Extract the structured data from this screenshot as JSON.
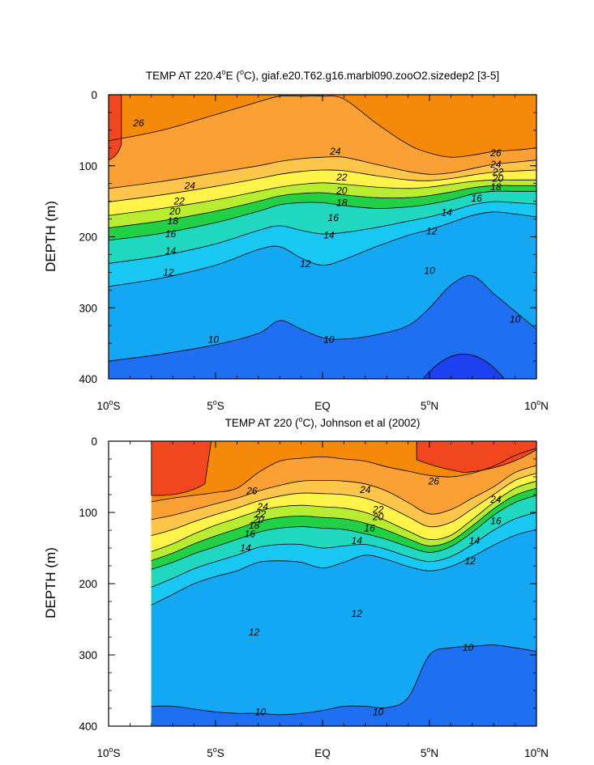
{
  "chart_data": [
    {
      "type": "contour",
      "title_parts": [
        "TEMP AT 220.4",
        "o",
        "E (",
        "o",
        "C), giaf.e20.T62.g16.marbl090.zooO2.sizedep2 [3-5]"
      ],
      "ylabel": "DEPTH (m)",
      "ylim": [
        0,
        400
      ],
      "xlim": [
        -10,
        10
      ],
      "yticks": [
        "0",
        "100",
        "200",
        "300",
        "400"
      ],
      "xticks": [
        {
          "pre": "10",
          "sup": "o",
          "post": "S"
        },
        {
          "pre": "5",
          "sup": "o",
          "post": "S"
        },
        {
          "pre": "EQ",
          "sup": "",
          "post": ""
        },
        {
          "pre": "5",
          "sup": "o",
          "post": "N"
        },
        {
          "pre": "10",
          "sup": "o",
          "post": "N"
        }
      ],
      "x": [
        -10,
        -7.5,
        -5,
        -3,
        -2,
        -1,
        0,
        1,
        2.5,
        4,
        5,
        6,
        7,
        8,
        9,
        10
      ],
      "isotherms": [
        {
          "level": 26,
          "depths": [
            65,
            50,
            28,
            10,
            2,
            2,
            2,
            6,
            40,
            70,
            82,
            88,
            85,
            80,
            78,
            75
          ]
        },
        {
          "level": 24,
          "depths": [
            132,
            122,
            110,
            100,
            94,
            90,
            88,
            88,
            98,
            108,
            112,
            110,
            104,
            98,
            95,
            92
          ]
        },
        {
          "level": 20,
          "depths": [
            170,
            160,
            148,
            136,
            130,
            126,
            124,
            126,
            130,
            132,
            130,
            126,
            122,
            120,
            120,
            120
          ]
        },
        {
          "level": 16,
          "depths": [
            205,
            195,
            180,
            164,
            155,
            152,
            152,
            156,
            160,
            158,
            154,
            148,
            140,
            136,
            136,
            136
          ]
        },
        {
          "level": 12,
          "depths": [
            270,
            258,
            240,
            218,
            214,
            230,
            240,
            232,
            214,
            198,
            190,
            180,
            170,
            165,
            168,
            172
          ]
        },
        {
          "level": 10,
          "depths": [
            375,
            365,
            352,
            336,
            318,
            330,
            342,
            344,
            338,
            325,
            300,
            268,
            255,
            280,
            305,
            330
          ]
        }
      ],
      "fill_colors": [
        {
          "from": 26,
          "to": 28,
          "color": "#f58a0a"
        },
        {
          "from": 24,
          "to": 26,
          "color": "#faa035"
        },
        {
          "from": 22,
          "to": 24,
          "color": "#fdc54a"
        },
        {
          "from": 20,
          "to": 22,
          "color": "#fff34a"
        },
        {
          "from": 18,
          "to": 20,
          "color": "#b8ec30"
        },
        {
          "from": 16,
          "to": 18,
          "color": "#22d046"
        },
        {
          "from": 14,
          "to": 16,
          "color": "#20d8c0"
        },
        {
          "from": 12,
          "to": 14,
          "color": "#18c8f2"
        },
        {
          "from": 10,
          "to": 12,
          "color": "#14a8f4"
        },
        {
          "from": 8,
          "to": 10,
          "color": "#1e6ff2"
        }
      ],
      "warm_patch_color": "#f2461e",
      "cold_core_color": "#1e40f0",
      "contour_labels": [
        {
          "text": "26",
          "x": -8.6,
          "y": 40
        },
        {
          "text": "26",
          "x": 8.1,
          "y": 82
        },
        {
          "text": "24",
          "x": 0.6,
          "y": 80
        },
        {
          "text": "24",
          "x": -6.2,
          "y": 128
        },
        {
          "text": "24",
          "x": 8.1,
          "y": 98
        },
        {
          "text": "22",
          "x": 0.9,
          "y": 116
        },
        {
          "text": "22",
          "x": -6.7,
          "y": 150
        },
        {
          "text": "22",
          "x": 8.2,
          "y": 109
        },
        {
          "text": "20",
          "x": 0.9,
          "y": 135
        },
        {
          "text": "20",
          "x": -6.9,
          "y": 164
        },
        {
          "text": "20",
          "x": 8.2,
          "y": 118
        },
        {
          "text": "18",
          "x": 0.9,
          "y": 152
        },
        {
          "text": "18",
          "x": -7.0,
          "y": 178
        },
        {
          "text": "18",
          "x": 8.1,
          "y": 130
        },
        {
          "text": "16",
          "x": 0.5,
          "y": 173
        },
        {
          "text": "16",
          "x": -7.1,
          "y": 196
        },
        {
          "text": "16",
          "x": 7.2,
          "y": 146
        },
        {
          "text": "14",
          "x": 0.3,
          "y": 198
        },
        {
          "text": "14",
          "x": -7.1,
          "y": 220
        },
        {
          "text": "14",
          "x": 5.8,
          "y": 166
        },
        {
          "text": "12",
          "x": -0.8,
          "y": 238
        },
        {
          "text": "12",
          "x": -7.2,
          "y": 250
        },
        {
          "text": "12",
          "x": 5.1,
          "y": 192
        },
        {
          "text": "10",
          "x": -5.1,
          "y": 345
        },
        {
          "text": "10",
          "x": 0.3,
          "y": 345
        },
        {
          "text": "10",
          "x": 5.0,
          "y": 248
        },
        {
          "text": "10",
          "x": 9.0,
          "y": 316
        }
      ]
    },
    {
      "type": "contour",
      "title_parts": [
        "TEMP AT 220 (",
        "o",
        "C), Johnson et al (2002)"
      ],
      "ylabel": "DEPTH (m)",
      "ylim": [
        0,
        400
      ],
      "xlim": [
        -10,
        10
      ],
      "data_xmin": -8,
      "yticks": [
        "0",
        "100",
        "200",
        "300",
        "400"
      ],
      "xticks": [
        {
          "pre": "10",
          "sup": "o",
          "post": "S"
        },
        {
          "pre": "5",
          "sup": "o",
          "post": "S"
        },
        {
          "pre": "EQ",
          "sup": "",
          "post": ""
        },
        {
          "pre": "5",
          "sup": "o",
          "post": "N"
        },
        {
          "pre": "10",
          "sup": "o",
          "post": "N"
        }
      ],
      "x": [
        -8,
        -7,
        -6,
        -5,
        -4,
        -3,
        -2,
        -1,
        0,
        1,
        2,
        3,
        4,
        5,
        6,
        7,
        8,
        9,
        10
      ],
      "isotherms": [
        {
          "level": 26,
          "depths": [
            85,
            80,
            76,
            72,
            66,
            44,
            28,
            24,
            22,
            25,
            28,
            36,
            42,
            48,
            50,
            45,
            35,
            20,
            10
          ]
        },
        {
          "level": 24,
          "depths": [
            110,
            104,
            96,
            88,
            80,
            70,
            62,
            56,
            55,
            56,
            60,
            70,
            86,
            102,
            96,
            80,
            64,
            44,
            34
          ]
        },
        {
          "level": 20,
          "depths": [
            155,
            144,
            130,
            118,
            108,
            98,
            92,
            90,
            92,
            94,
            100,
            112,
            126,
            138,
            132,
            110,
            86,
            66,
            56
          ]
        },
        {
          "level": 16,
          "depths": [
            180,
            170,
            158,
            148,
            138,
            128,
            122,
            120,
            122,
            124,
            130,
            138,
            148,
            156,
            148,
            128,
            104,
            86,
            76
          ]
        },
        {
          "level": 12,
          "depths": [
            230,
            215,
            200,
            190,
            182,
            170,
            168,
            170,
            178,
            170,
            160,
            166,
            176,
            182,
            176,
            162,
            146,
            132,
            124
          ]
        },
        {
          "level": 10,
          "depths": [
            372,
            372,
            376,
            380,
            382,
            382,
            384,
            382,
            378,
            372,
            372,
            374,
            360,
            300,
            290,
            288,
            286,
            290,
            295
          ]
        }
      ],
      "fill_colors": [
        {
          "from": 26,
          "to": 28,
          "color": "#f58a0a"
        },
        {
          "from": 24,
          "to": 26,
          "color": "#faa035"
        },
        {
          "from": 22,
          "to": 24,
          "color": "#fdc54a"
        },
        {
          "from": 20,
          "to": 22,
          "color": "#fff34a"
        },
        {
          "from": 18,
          "to": 20,
          "color": "#b8ec30"
        },
        {
          "from": 16,
          "to": 18,
          "color": "#22d046"
        },
        {
          "from": 14,
          "to": 16,
          "color": "#20d8c0"
        },
        {
          "from": 12,
          "to": 14,
          "color": "#18c8f2"
        },
        {
          "from": 10,
          "to": 12,
          "color": "#14a8f4"
        },
        {
          "from": 8,
          "to": 10,
          "color": "#1e6ff2"
        }
      ],
      "warm_patch_color": "#f2461e",
      "contour_labels": [
        {
          "text": "26",
          "x": -3.3,
          "y": 70
        },
        {
          "text": "26",
          "x": 5.2,
          "y": 56
        },
        {
          "text": "24",
          "x": 2.0,
          "y": 68
        },
        {
          "text": "24",
          "x": -2.8,
          "y": 92
        },
        {
          "text": "24",
          "x": 8.1,
          "y": 82
        },
        {
          "text": "22",
          "x": 2.6,
          "y": 96
        },
        {
          "text": "22",
          "x": -2.9,
          "y": 102
        },
        {
          "text": "20",
          "x": 2.6,
          "y": 106
        },
        {
          "text": "20",
          "x": -3.0,
          "y": 110
        },
        {
          "text": "18",
          "x": -3.2,
          "y": 118
        },
        {
          "text": "16",
          "x": 2.2,
          "y": 122
        },
        {
          "text": "16",
          "x": -3.4,
          "y": 130
        },
        {
          "text": "16",
          "x": 8.1,
          "y": 112
        },
        {
          "text": "14",
          "x": 1.6,
          "y": 140
        },
        {
          "text": "14",
          "x": -3.6,
          "y": 150
        },
        {
          "text": "14",
          "x": 7.1,
          "y": 140
        },
        {
          "text": "12",
          "x": 6.9,
          "y": 168
        },
        {
          "text": "12",
          "x": 1.6,
          "y": 242
        },
        {
          "text": "12",
          "x": -3.2,
          "y": 268
        },
        {
          "text": "10",
          "x": 6.8,
          "y": 290
        },
        {
          "text": "10",
          "x": -2.9,
          "y": 380
        },
        {
          "text": "10",
          "x": 2.6,
          "y": 380
        }
      ]
    }
  ]
}
